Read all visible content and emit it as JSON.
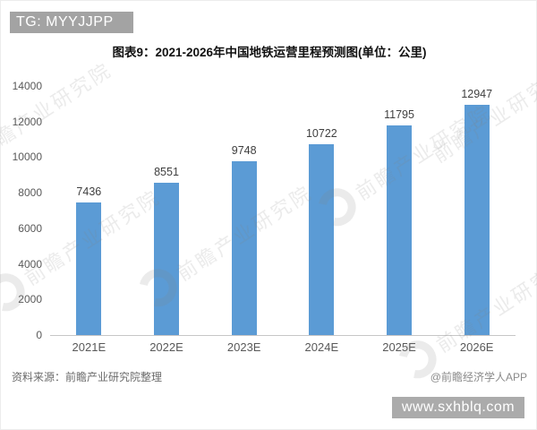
{
  "overlays": {
    "tg_badge": "TG: MYYJJPP",
    "url_badge": "www.sxhblq.com"
  },
  "footer": {
    "source": "资料来源：前瞻产业研究院整理",
    "credit": "@前瞻经济学人APP"
  },
  "watermark": {
    "text": "前瞻产业研究院"
  },
  "chart_data": {
    "type": "bar",
    "title": "图表9：2021-2026年中国地铁运营里程预测图(单位：公里)",
    "categories": [
      "2021E",
      "2022E",
      "2023E",
      "2024E",
      "2025E",
      "2026E"
    ],
    "values": [
      7436,
      8551,
      9748,
      10722,
      11795,
      12947
    ],
    "xlabel": "",
    "ylabel": "",
    "ylim": [
      0,
      14000
    ],
    "yticks": [
      0,
      2000,
      4000,
      6000,
      8000,
      10000,
      12000,
      14000
    ],
    "bar_color": "#5B9BD5",
    "grid": false,
    "legend": "none"
  }
}
